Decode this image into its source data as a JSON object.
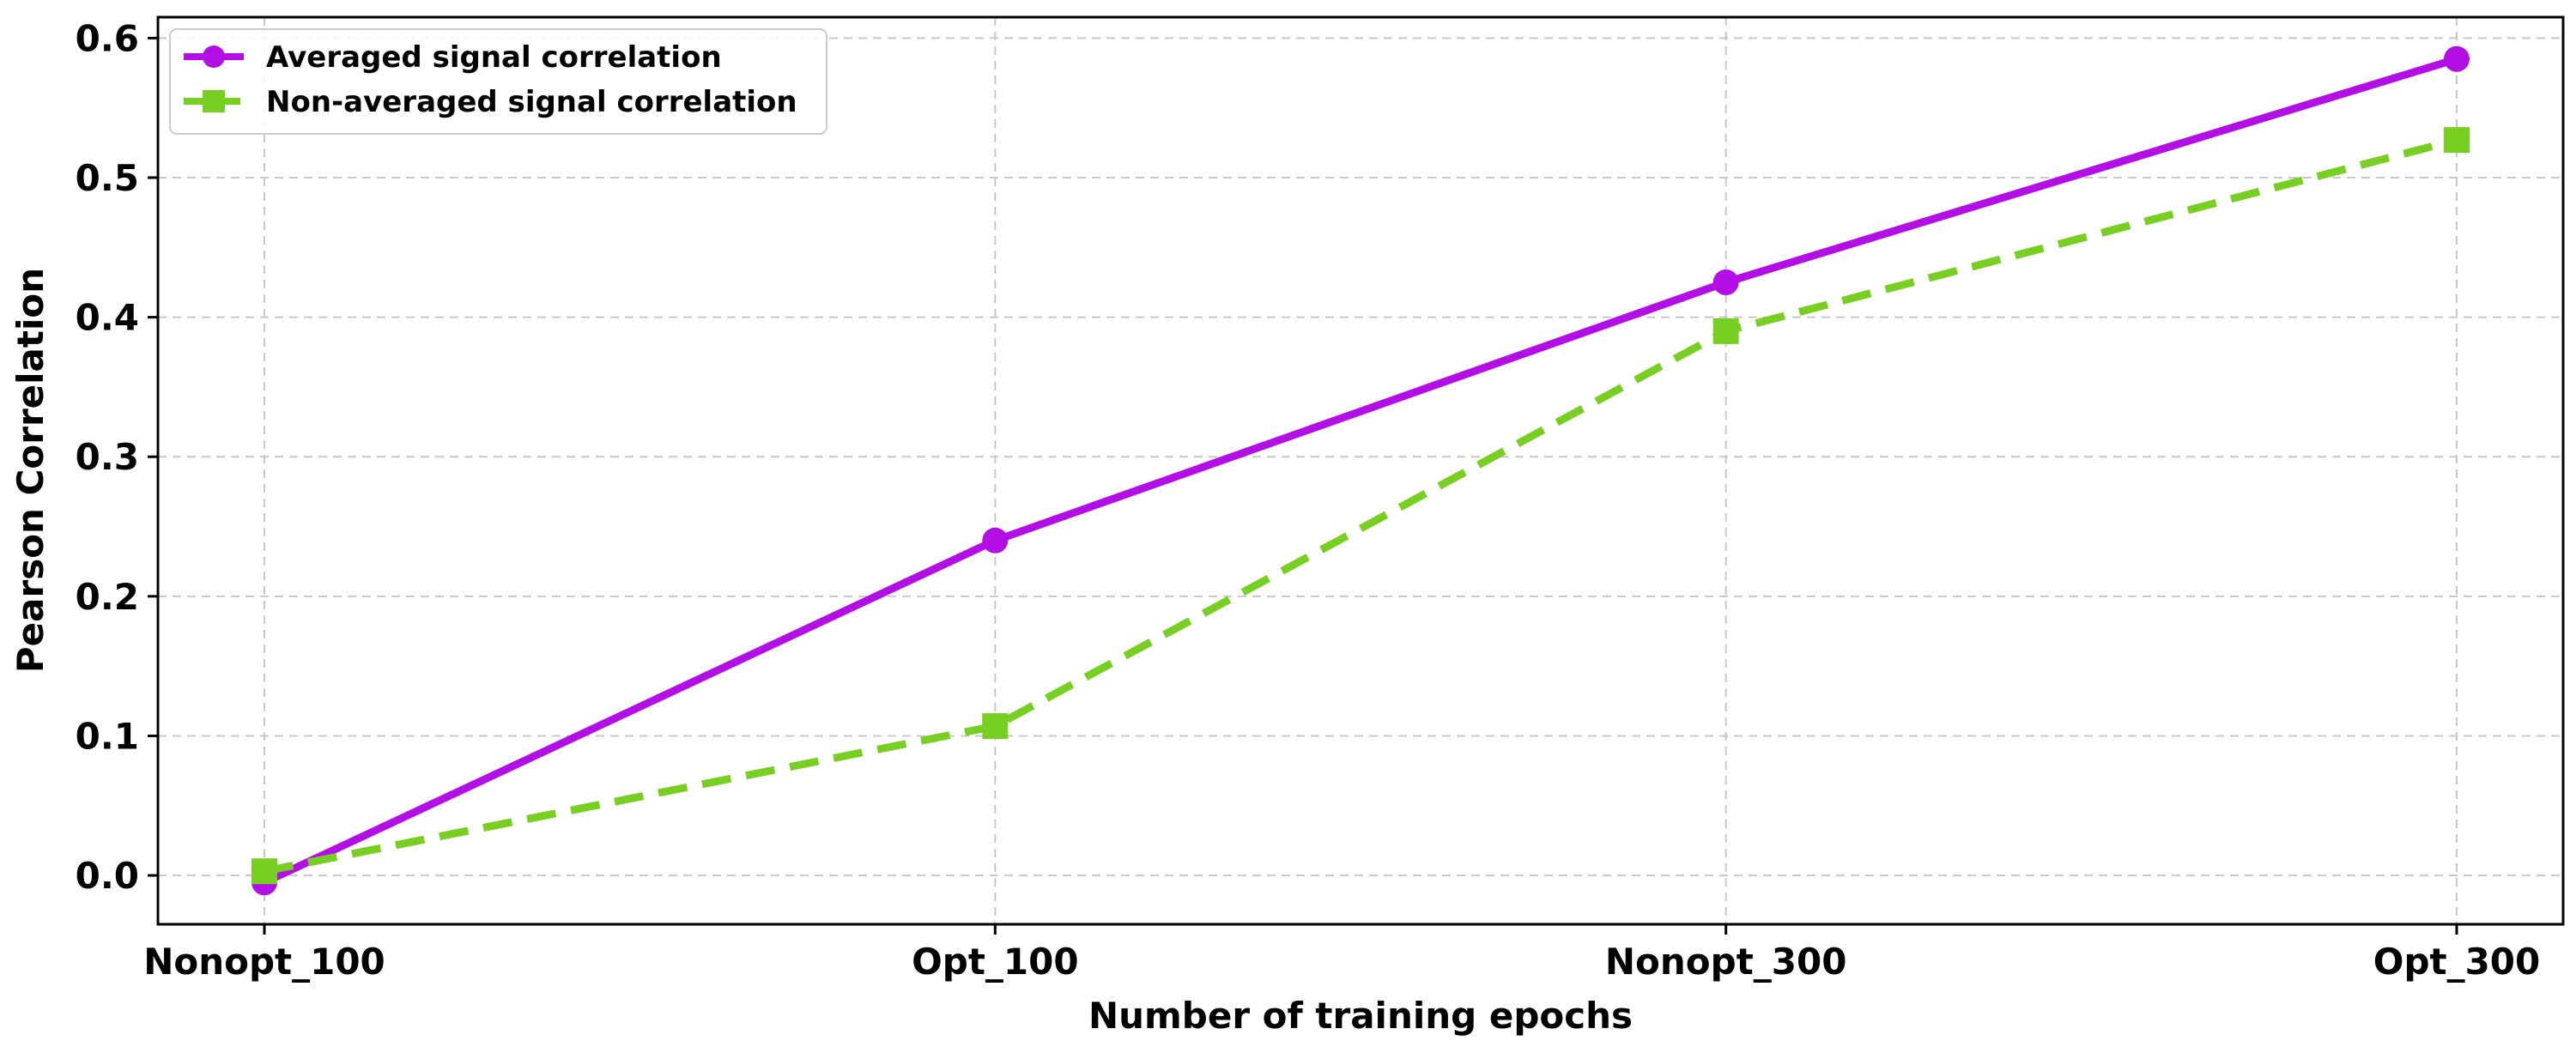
{
  "chart_data": {
    "type": "line",
    "categories": [
      "Nonopt_100",
      "Opt_100",
      "Nonopt_300",
      "Opt_300"
    ],
    "series": [
      {
        "name": "Averaged signal correlation",
        "values": [
          -0.005,
          0.24,
          0.425,
          0.585
        ],
        "color": "#b30ee6",
        "line_style": "solid",
        "marker": "circle"
      },
      {
        "name": "Non-averaged signal correlation",
        "values": [
          0.003,
          0.107,
          0.39,
          0.527
        ],
        "color": "#77d021",
        "line_style": "dashed",
        "marker": "square"
      }
    ],
    "xlabel": "Number of training epochs",
    "ylabel": "Pearson Correlation",
    "ylim": [
      -0.035,
      0.615
    ],
    "yticks": [
      0.0,
      0.1,
      0.2,
      0.3,
      0.4,
      0.5,
      0.6
    ],
    "ytick_labels": [
      "0.0",
      "0.1",
      "0.2",
      "0.3",
      "0.4",
      "0.5",
      "0.6"
    ],
    "grid": true,
    "legend_position": "top-left"
  }
}
